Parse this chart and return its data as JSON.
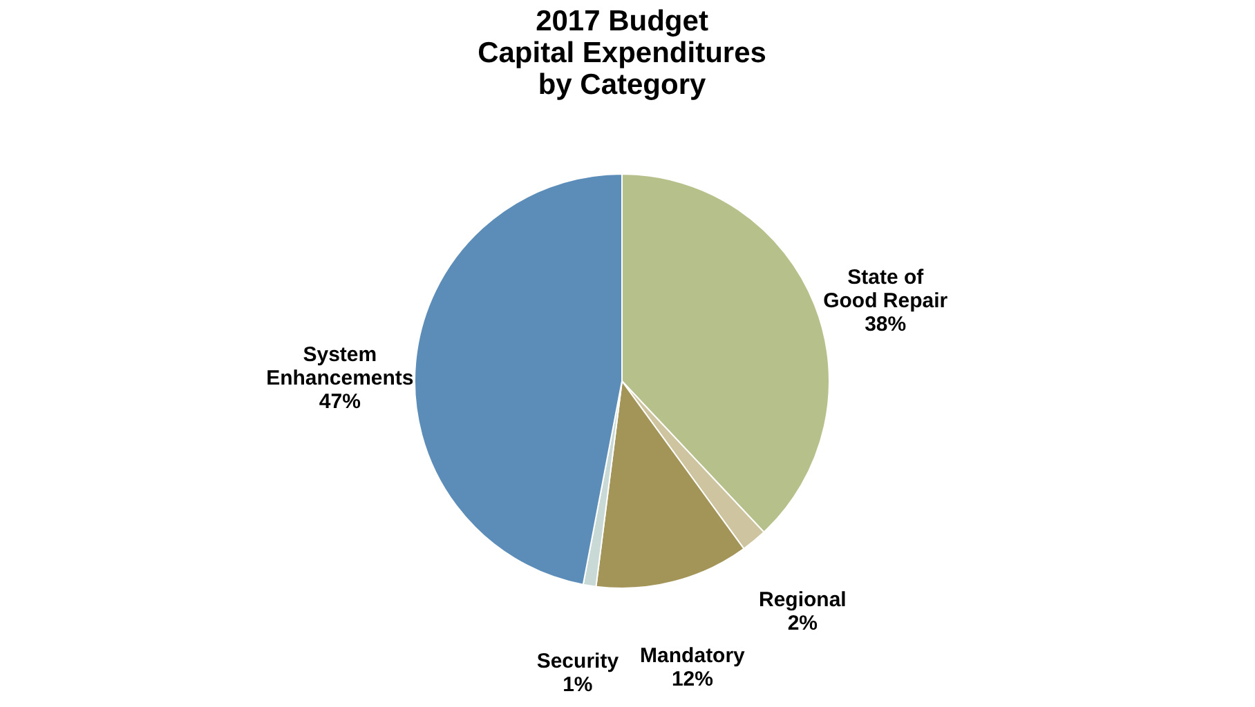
{
  "chart_data": {
    "type": "pie",
    "title": "2017 Budget\nCapital Expenditures\nby Category",
    "categories": [
      "State of Good Repair",
      "Regional",
      "Mandatory",
      "Security",
      "System Enhancements"
    ],
    "values": [
      38,
      2,
      12,
      1,
      47
    ],
    "value_labels": [
      "38%",
      "2%",
      "12%",
      "1%",
      "47%"
    ],
    "colors": [
      "#b6c08a",
      "#cfc4a0",
      "#a39558",
      "#c9d9d6",
      "#5b8db8"
    ],
    "legend": false
  }
}
